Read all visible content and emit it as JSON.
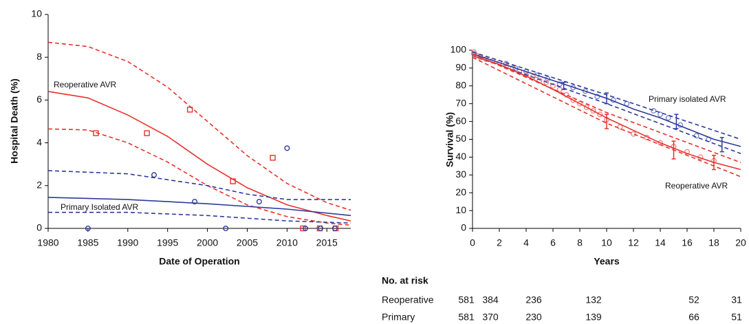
{
  "chart_data": [
    {
      "type": "scatter",
      "xlabel": "Date of Operation",
      "ylabel": "Hospital Death (%)",
      "xlim": [
        1980,
        2018
      ],
      "xticks": [
        1980,
        1985,
        1990,
        1995,
        2000,
        2005,
        2010,
        2015
      ],
      "ylim": [
        0,
        10
      ],
      "yticks": [
        0,
        2,
        4,
        6,
        8,
        10
      ],
      "grid": false,
      "annotations": [
        "Reoperative AVR",
        "Primary Isolated AVR"
      ],
      "series": [
        {
          "color": "#e8302a",
          "marker": "square",
          "x": [
            1986,
            1992.4,
            1997.8,
            2003.2,
            2008.2,
            2012,
            2014.1,
            2016.1
          ],
          "values": [
            4.45,
            4.45,
            5.55,
            2.2,
            3.3,
            0,
            0,
            0
          ]
        },
        {
          "color": "#2b3a9a",
          "marker": "circle",
          "x": [
            1985,
            1993.3,
            1998.4,
            2002.3,
            2006.5,
            2010,
            2012.3,
            2014.2,
            2016
          ],
          "values": [
            0,
            2.5,
            1.25,
            0,
            1.25,
            3.75,
            0,
            0,
            0
          ]
        },
        {
          "color": "#e8302a",
          "style": "solid",
          "x": [
            1980,
            1985,
            1990,
            1995,
            2000,
            2005,
            2010,
            2015,
            2018
          ],
          "values": [
            6.4,
            6.1,
            5.3,
            4.3,
            3.0,
            1.9,
            1.1,
            0.6,
            0.35
          ]
        },
        {
          "color": "#e8302a",
          "style": "dashed",
          "x": [
            1980,
            1985,
            1990,
            1995,
            2000,
            2005,
            2010,
            2015,
            2018
          ],
          "values": [
            8.7,
            8.5,
            7.8,
            6.6,
            5.0,
            3.4,
            2.1,
            1.2,
            0.85
          ]
        },
        {
          "color": "#e8302a",
          "style": "dashed",
          "x": [
            1980,
            1985,
            1990,
            1995,
            2000,
            2005,
            2010,
            2015,
            2018
          ],
          "values": [
            4.65,
            4.6,
            4.0,
            3.1,
            2.0,
            1.1,
            0.55,
            0.25,
            0.15
          ]
        },
        {
          "color": "#2b3a9a",
          "style": "solid",
          "x": [
            1980,
            1990,
            2000,
            2010,
            2018
          ],
          "values": [
            1.45,
            1.35,
            1.15,
            0.9,
            0.6
          ]
        },
        {
          "color": "#2b3a9a",
          "style": "dashed",
          "x": [
            1980,
            1990,
            2000,
            2005,
            2010,
            2018
          ],
          "values": [
            2.7,
            2.55,
            2.0,
            1.6,
            1.35,
            1.35
          ]
        },
        {
          "color": "#2b3a9a",
          "style": "dashed",
          "x": [
            1980,
            1990,
            2000,
            2010,
            2018
          ],
          "values": [
            0.75,
            0.75,
            0.6,
            0.35,
            0.25
          ]
        }
      ]
    },
    {
      "type": "line",
      "xlabel": "Years",
      "ylabel": "Survival (%)",
      "xlim": [
        0,
        20
      ],
      "xticks": [
        0,
        2,
        4,
        6,
        8,
        10,
        12,
        14,
        16,
        18,
        20
      ],
      "ylim": [
        0,
        100
      ],
      "yticks": [
        0,
        10,
        20,
        30,
        40,
        50,
        60,
        70,
        80,
        90,
        100
      ],
      "grid": false,
      "annotations": [
        "Primary isolated AVR",
        "Reoperative AVR"
      ],
      "series": [
        {
          "color": "#7f8bd0",
          "marker": "circle",
          "x": [
            0.1,
            0.3,
            0.6,
            1,
            1.5,
            2.5,
            3.2,
            4,
            4.8,
            5.6,
            6.5,
            7.5,
            8.4,
            9.3,
            10.5,
            11.5,
            13.5,
            14,
            14.6,
            15.5,
            16.7,
            17.6
          ],
          "values": [
            98,
            97,
            96,
            95,
            94,
            92.5,
            90,
            88,
            86,
            84,
            81,
            79,
            77,
            74,
            72,
            70,
            66,
            64,
            62,
            58,
            52,
            50
          ]
        },
        {
          "color": "#f08a8a",
          "marker": "circle",
          "x": [
            0.1,
            0.3,
            0.6,
            1,
            1.5,
            2,
            2.5,
            3,
            3.5,
            4,
            4.5,
            5,
            5.5,
            6,
            6.5,
            7,
            7.5,
            8,
            8.5,
            9,
            9.5,
            10,
            11,
            12,
            13,
            14,
            15,
            16,
            17,
            18
          ],
          "values": [
            99,
            97,
            96,
            95,
            94,
            93,
            91,
            90,
            88,
            86,
            85,
            83,
            82,
            80,
            78,
            75,
            72,
            70,
            68,
            66,
            64,
            61,
            57,
            53,
            51,
            48,
            46,
            43,
            40,
            38
          ]
        },
        {
          "color": "#2b3a9a",
          "style": "solid",
          "x": [
            0,
            2,
            4,
            6,
            8,
            10,
            12,
            14,
            16,
            18,
            20
          ],
          "values": [
            98,
            93,
            88,
            83,
            78,
            73,
            67,
            62,
            56,
            50,
            46
          ]
        },
        {
          "color": "#2b3a9a",
          "style": "dashed",
          "x": [
            0,
            10,
            20
          ],
          "values": [
            99,
            75,
            50
          ]
        },
        {
          "color": "#2b3a9a",
          "style": "dashed",
          "x": [
            0,
            10,
            20
          ],
          "values": [
            97,
            70,
            42
          ]
        },
        {
          "color": "#e8302a",
          "style": "solid",
          "x": [
            0,
            2,
            4,
            6,
            8,
            10,
            12,
            14,
            16,
            18,
            20
          ],
          "values": [
            97,
            92,
            85.5,
            78,
            70,
            62,
            55,
            48,
            42,
            37,
            33
          ]
        },
        {
          "color": "#e8302a",
          "style": "dashed",
          "x": [
            0,
            10,
            20
          ],
          "values": [
            98,
            65,
            37
          ]
        },
        {
          "color": "#e8302a",
          "style": "dashed",
          "x": [
            0,
            10,
            20
          ],
          "values": [
            96,
            59,
            29
          ]
        },
        {
          "color": "#2b3a9a",
          "x": [
            6.8,
            10,
            15.2,
            18.6
          ],
          "values": [
            80,
            73,
            60,
            47
          ],
          "errors": [
            2,
            3,
            4,
            4
          ]
        },
        {
          "color": "#e8302a",
          "x": [
            10,
            15,
            18
          ],
          "values": [
            60,
            44,
            37
          ],
          "errors": [
            4,
            5,
            4
          ]
        }
      ]
    }
  ],
  "risk_table": {
    "title": "No. at risk",
    "rows": [
      {
        "label": "Reoperative",
        "values": [
          581,
          384,
          236,
          132,
          52,
          31
        ]
      },
      {
        "label": "Primary",
        "values": [
          581,
          370,
          230,
          139,
          66,
          51
        ]
      }
    ]
  }
}
